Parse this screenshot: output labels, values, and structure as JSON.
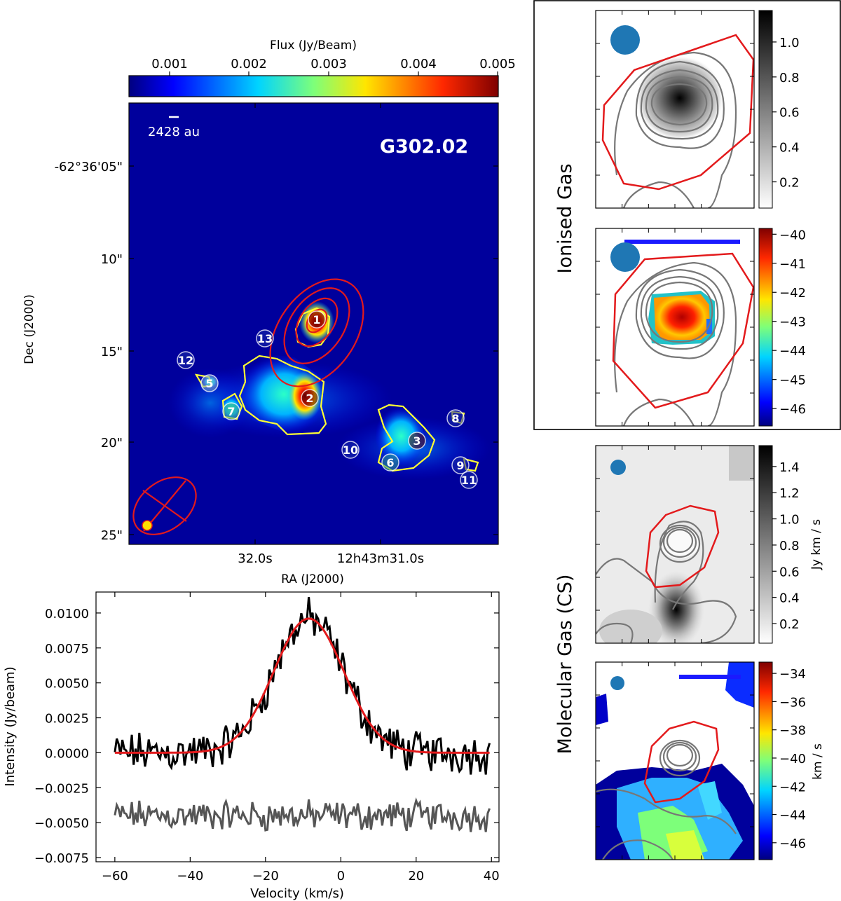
{
  "main_map": {
    "colorbar_label": "Flux (Jy/Beam)",
    "colorbar_ticks": [
      "0.001",
      "0.002",
      "0.003",
      "0.004",
      "0.005"
    ],
    "source_name": "G302.02",
    "scalebar_label": "2428 au",
    "xlabel": "RA (J2000)",
    "ylabel": "Dec (J2000)",
    "xticks": [
      "32.0s",
      "12h43m31.0s"
    ],
    "yticks": [
      "-62°36'05\"",
      "10\"",
      "15\"",
      "20\"",
      "25\""
    ],
    "sources": [
      {
        "label": "1"
      },
      {
        "label": "2"
      },
      {
        "label": "3"
      },
      {
        "label": "5"
      },
      {
        "label": "6"
      },
      {
        "label": "7"
      },
      {
        "label": "8"
      },
      {
        "label": "9"
      },
      {
        "label": "10"
      },
      {
        "label": "11"
      },
      {
        "label": "12"
      },
      {
        "label": "13"
      }
    ]
  },
  "chart_data": [
    {
      "type": "line",
      "title": "",
      "xlabel": "Velocity (km/s)",
      "ylabel": "Intensity (Jy/beam)",
      "xlim": [
        -65,
        42
      ],
      "ylim": [
        -0.0078,
        0.0115
      ],
      "xticks": [
        "−60",
        "−40",
        "−20",
        "0",
        "20",
        "40"
      ],
      "yticks": [
        "0.0100",
        "0.0075",
        "0.0050",
        "0.0025",
        "0.0000",
        "−0.0025",
        "−0.0050",
        "−0.0075"
      ],
      "series": [
        {
          "name": "spectrum",
          "color": "#000000",
          "x_range": [
            -60,
            39.5
          ],
          "note": "noisy spectrum, peak ~0.0105"
        },
        {
          "name": "gaussian fit",
          "color": "#e31a1c",
          "amplitude": 0.0096,
          "center": -8.5,
          "sigma": 9.3
        },
        {
          "name": "residual (offset -0.0045)",
          "color": "#555555",
          "offset": -0.0045
        }
      ]
    },
    {
      "type": "heatmap",
      "panel": "Ionised Gas – intensity",
      "colorbar_ticks": [
        "1.0",
        "0.8",
        "0.6",
        "0.4",
        "0.2"
      ],
      "colorbar_range": [
        0.05,
        1.18
      ]
    },
    {
      "type": "heatmap",
      "panel": "Ionised Gas – velocity",
      "colorbar_ticks": [
        "−40",
        "−41",
        "−42",
        "−43",
        "−44",
        "−45",
        "−46"
      ],
      "colorbar_range": [
        -46.6,
        -39.8
      ]
    },
    {
      "type": "heatmap",
      "panel": "Molecular Gas (CS) – moment 0",
      "colorbar_label": "Jy km / s",
      "colorbar_ticks": [
        "1.4",
        "1.2",
        "1.0",
        "0.8",
        "0.6",
        "0.4",
        "0.2"
      ],
      "colorbar_range": [
        0.05,
        1.56
      ]
    },
    {
      "type": "heatmap",
      "panel": "Molecular Gas (CS) – moment 1",
      "colorbar_label": "km / s",
      "colorbar_ticks": [
        "−34",
        "−36",
        "−38",
        "−40",
        "−42",
        "−44",
        "−46"
      ],
      "colorbar_range": [
        -47.2,
        -33.2
      ]
    }
  ],
  "labels": {
    "ionised": "Ionised Gas",
    "molecular": "Molecular Gas (CS)"
  }
}
